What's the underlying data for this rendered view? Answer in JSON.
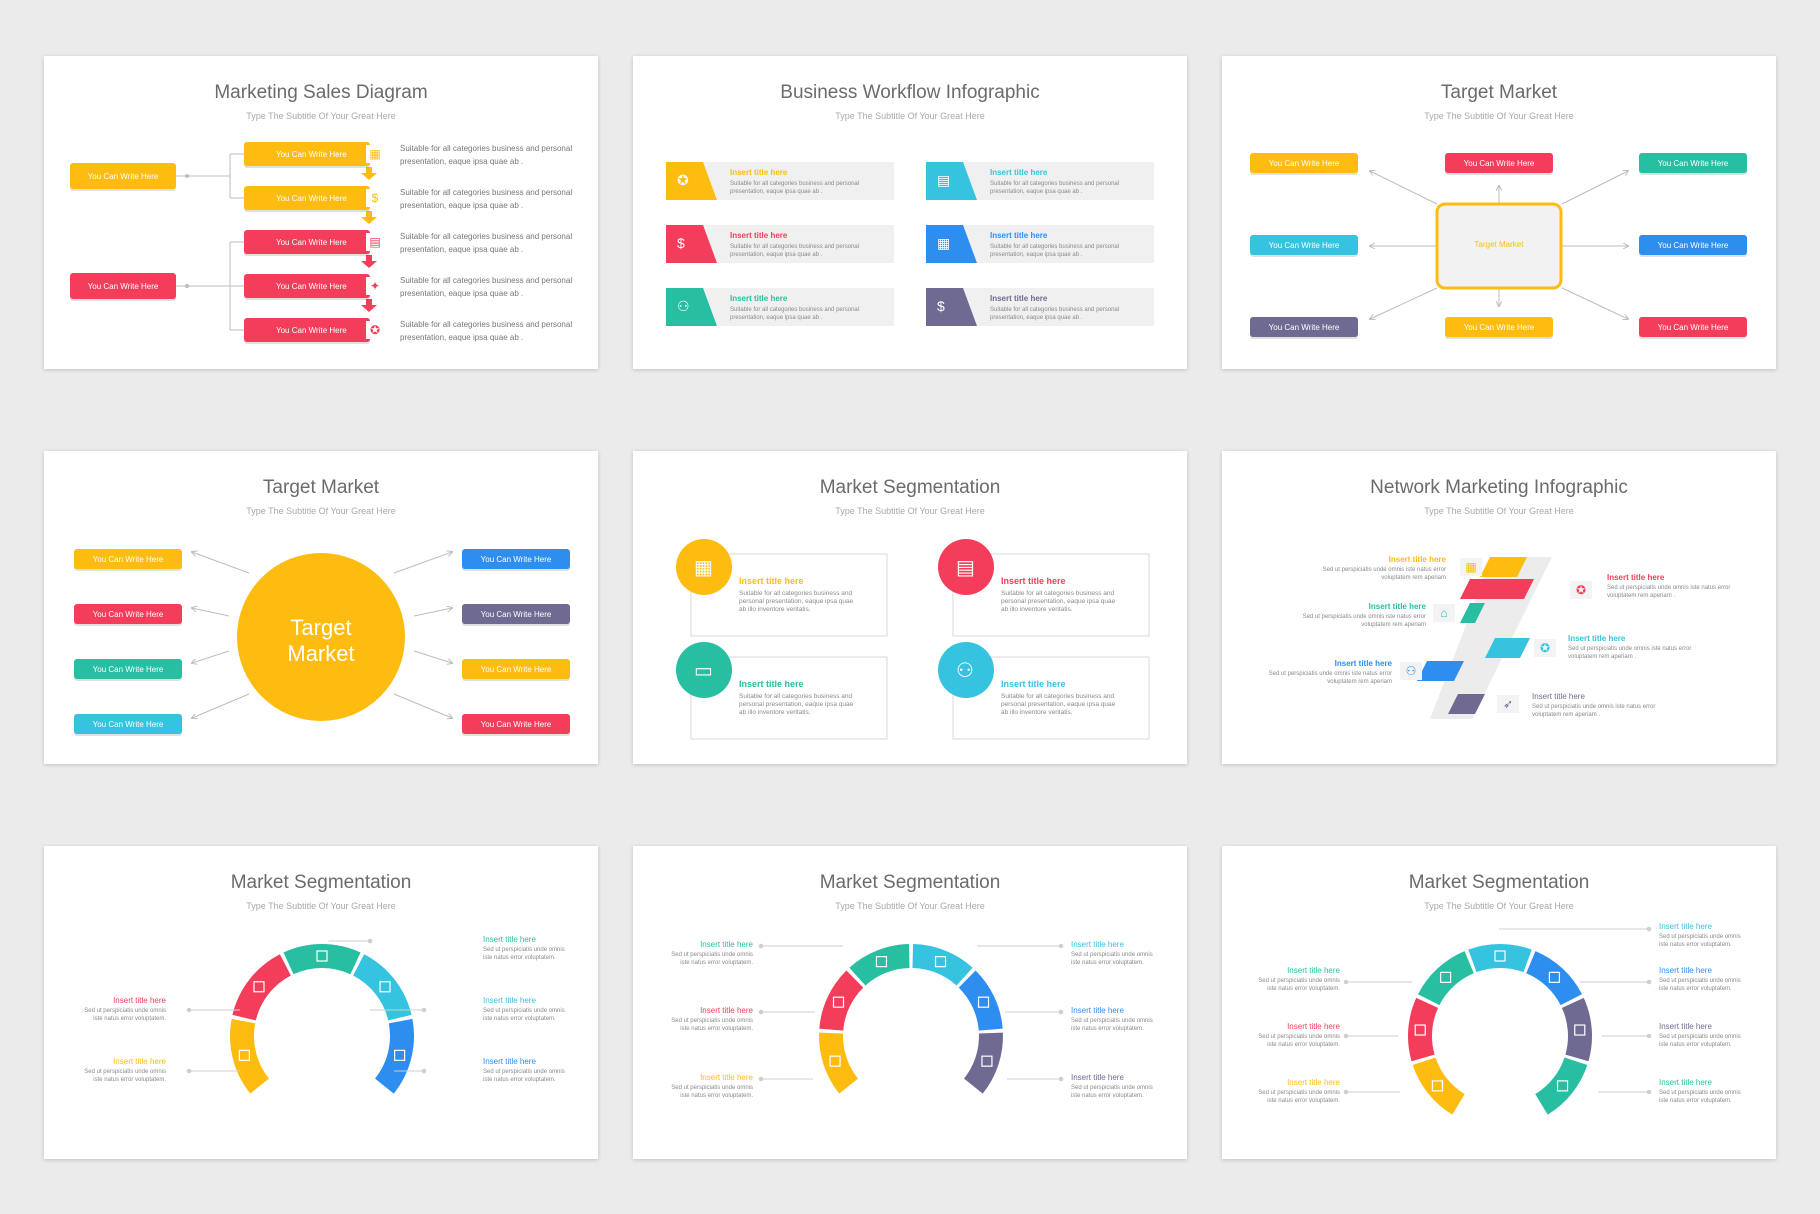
{
  "colors": {
    "yellow": "#fdbc0f",
    "red": "#f33d5a",
    "teal": "#27bea2",
    "cyan": "#35c3e0",
    "blue": "#2d8ef0",
    "purple": "#6f6a92",
    "gray": "#ececec"
  },
  "slides": [
    {
      "title": "Marketing Sales Diagram",
      "subtitle": "Type The Subtitle Of Your Great Here",
      "left_labels": [
        "You Can Write Here",
        "You Can Write Here"
      ],
      "rows": [
        {
          "label": "You Can Write Here",
          "line1": "Suitable for all categories business and personal",
          "line2": "presentation, eaque ipsa quae ab ."
        },
        {
          "label": "You Can Write Here",
          "line1": "Suitable for all categories business and personal",
          "line2": "presentation, eaque ipsa quae ab ."
        },
        {
          "label": "You Can Write Here",
          "line1": "Suitable for all categories business and personal",
          "line2": "presentation, eaque ipsa quae ab ."
        },
        {
          "label": "You Can Write Here",
          "line1": "Suitable for all categories business and personal",
          "line2": "presentation, eaque ipsa quae ab ."
        },
        {
          "label": "You Can Write Here",
          "line1": "Suitable for all categories business and personal",
          "line2": "presentation, eaque ipsa quae ab ."
        }
      ],
      "icons": [
        "chart-icon",
        "money-icon",
        "monitor-chart-icon",
        "lightbulb-icon",
        "award-icon"
      ]
    },
    {
      "title": "Business Workflow Infographic",
      "subtitle": "Type The Subtitle Of Your Great Here",
      "items": [
        {
          "title": "Insert title here",
          "line1": "Suitable for all categories business and personal",
          "line2": "presentation, eaque ipsa quae ab .",
          "icon": "award-icon"
        },
        {
          "title": "Insert title here",
          "line1": "Suitable for all categories business and personal",
          "line2": "presentation, eaque ipsa quae ab .",
          "icon": "monitor-chart-icon"
        },
        {
          "title": "Insert title here",
          "line1": "Suitable for all categories business and personal",
          "line2": "presentation, eaque ipsa quae ab .",
          "icon": "money-icon"
        },
        {
          "title": "Insert title here",
          "line1": "Suitable for all categories business and personal",
          "line2": "presentation, eaque ipsa quae ab .",
          "icon": "calendar-icon"
        },
        {
          "title": "Insert title here",
          "line1": "Suitable for all categories business and personal",
          "line2": "presentation, eaque ipsa quae ab .",
          "icon": "team-icon"
        },
        {
          "title": "Insert title here",
          "line1": "Suitable for all categories business and personal",
          "line2": "presentation, eaque ipsa quae ab .",
          "icon": "moneybag-icon"
        }
      ]
    },
    {
      "title": "Target Market",
      "subtitle": "Type The Subtitle Of Your Great Here",
      "center": "Target Market",
      "labels": [
        "You Can Write Here",
        "You Can Write Here",
        "You Can Write Here",
        "You Can Write Here",
        "You Can Write Here",
        "You Can Write Here",
        "You Can Write Here",
        "You Can Write Here"
      ]
    },
    {
      "title": "Target Market",
      "subtitle": "Type The Subtitle Of Your Great Here",
      "center_line1": "Target",
      "center_line2": "Market",
      "labels": [
        "You Can Write Here",
        "You Can Write Here",
        "You Can Write Here",
        "You Can Write Here",
        "You Can Write Here",
        "You Can Write Here",
        "You Can Write Here",
        "You Can Write Here"
      ]
    },
    {
      "title": "Market Segmentation",
      "subtitle": "Type The Subtitle Of Your Great Here",
      "items": [
        {
          "title": "Insert title here",
          "line1": "Suitable for all categories business and",
          "line2": "personal presentation, eaque ipsa quae",
          "line3": "ab illo inventore veritatis.",
          "icon": "calendar-icon"
        },
        {
          "title": "Insert title here",
          "line1": "Suitable for all categories business and",
          "line2": "personal presentation, eaque ipsa quae",
          "line3": "ab illo inventore veritatis.",
          "icon": "monitor-chart-icon"
        },
        {
          "title": "Insert title here",
          "line1": "Suitable for all categories business and",
          "line2": "personal presentation, eaque ipsa quae",
          "line3": "ab illo inventore veritatis.",
          "icon": "wallet-icon"
        },
        {
          "title": "Insert title here",
          "line1": "Suitable for all categories business and",
          "line2": "personal presentation, eaque ipsa quae",
          "line3": "ab illo inventore veritatis.",
          "icon": "team-icon"
        }
      ]
    },
    {
      "title": "Network Marketing Infographic",
      "subtitle": "Type The Subtitle Of Your Great Here",
      "items": [
        {
          "title": "Insert title here",
          "line1": "Sed ut perspiciatis unde omnis iste natus error",
          "line2": "voluptatem rem aperiam"
        },
        {
          "title": "Insert title here",
          "line1": "Sed ut perspiciatis unde omnis iste natus error",
          "line2": "voluptatem rem aperiam ."
        },
        {
          "title": "Insert title here",
          "line1": "Sed ut perspiciatis unde omnis iste natus error",
          "line2": "voluptatem rem aperiam"
        },
        {
          "title": "Insert title here",
          "line1": "Sed ut perspiciatis unde omnis iste natus error",
          "line2": "voluptatem rem aperiam ."
        },
        {
          "title": "Insert title here",
          "line1": "Sed ut perspiciatis unde omnis iste natus error",
          "line2": "voluptatem rem aperiam"
        },
        {
          "title": "Insert title here",
          "line1": "Sed ut perspiciatis unde omnis iste natus error",
          "line2": "voluptatem rem aperiam ."
        }
      ]
    },
    {
      "title": "Market Segmentation",
      "subtitle": "Type The Subtitle Of Your Great Here",
      "items": [
        {
          "title": "Insert title here",
          "line1": "Sed ut perspiciatis unde omnis",
          "line2": "iste natus error voluptatem."
        },
        {
          "title": "Insert title here",
          "line1": "Sed ut perspiciatis unde omnis",
          "line2": "iste natus error voluptatem."
        },
        {
          "title": "Insert title here",
          "line1": "Sed ut perspiciatis unde omnis",
          "line2": "iste natus error voluptatem."
        },
        {
          "title": "Insert title here",
          "line1": "Sed ut perspiciatis unde omnis",
          "line2": "iste natus error voluptatem."
        },
        {
          "title": "Insert title here",
          "line1": "Sed ut perspiciatis unde omnis",
          "line2": "iste natus error voluptatem."
        }
      ]
    },
    {
      "title": "Market Segmentation",
      "subtitle": "Type The Subtitle Of Your Great Here",
      "items": [
        {
          "title": "Insert title here",
          "line1": "Sed ut perspiciatis unde omnis",
          "line2": "iste natus error voluptatem."
        },
        {
          "title": "Insert title here",
          "line1": "Sed ut perspiciatis unde omnis",
          "line2": "iste natus error voluptatem."
        },
        {
          "title": "Insert title here",
          "line1": "Sed ut perspiciatis unde omnis",
          "line2": "iste natus error voluptatem."
        },
        {
          "title": "Insert title here",
          "line1": "Sed ut perspiciatis unde omnis",
          "line2": "iste natus error voluptatem."
        },
        {
          "title": "Insert title here",
          "line1": "Sed ut perspiciatis unde omnis",
          "line2": "iste natus error voluptatem."
        },
        {
          "title": "Insert title here",
          "line1": "Sed ut perspiciatis unde omnis",
          "line2": "iste natus error voluptatem."
        }
      ]
    },
    {
      "title": "Market Segmentation",
      "subtitle": "Type The Subtitle Of Your Great Here",
      "items": [
        {
          "title": "Insert title here",
          "line1": "Sed ut perspiciatis unde omnis",
          "line2": "iste natus error voluptatem."
        },
        {
          "title": "Insert title here",
          "line1": "Sed ut perspiciatis unde omnis",
          "line2": "iste natus error voluptatem."
        },
        {
          "title": "Insert title here",
          "line1": "Sed ut perspiciatis unde omnis",
          "line2": "iste natus error voluptatem."
        },
        {
          "title": "Insert title here",
          "line1": "Sed ut perspiciatis unde omnis",
          "line2": "iste natus error voluptatem."
        },
        {
          "title": "Insert title here",
          "line1": "Sed ut perspiciatis unde omnis",
          "line2": "iste natus error voluptatem."
        },
        {
          "title": "Insert title here",
          "line1": "Sed ut perspiciatis unde omnis",
          "line2": "iste natus error voluptatem."
        },
        {
          "title": "Insert title here",
          "line1": "Sed ut perspiciatis unde omnis",
          "line2": "iste natus error voluptatem."
        }
      ]
    }
  ]
}
